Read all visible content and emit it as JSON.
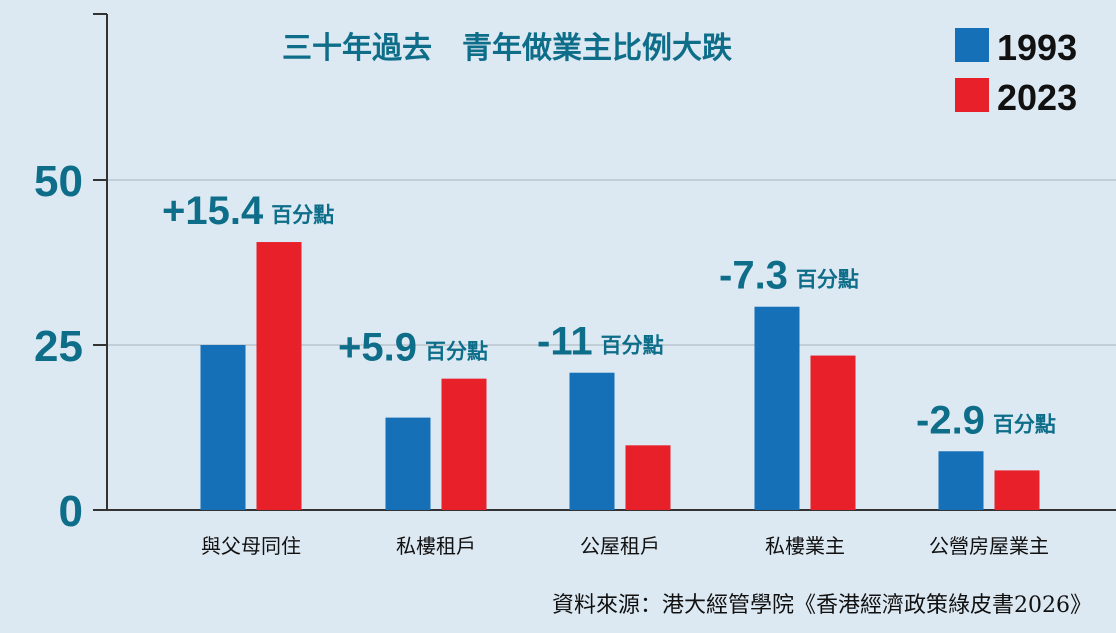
{
  "chart_data": {
    "type": "bar",
    "title": "三十年過去　青年做業主比例大跌",
    "categories": [
      "與父母同住",
      "私樓租戶",
      "公屋租戶",
      "私樓業主",
      "公營房屋業主"
    ],
    "series": [
      {
        "name": "1993",
        "color": "#1570b8",
        "values": [
          25.0,
          14.0,
          20.8,
          30.8,
          8.9
        ]
      },
      {
        "name": "2023",
        "color": "#e8202a",
        "values": [
          40.6,
          19.9,
          9.8,
          23.4,
          6.0
        ]
      }
    ],
    "annotations": [
      {
        "value": "+15.4",
        "unit": "百分點"
      },
      {
        "value": "+5.9",
        "unit": "百分點"
      },
      {
        "value": "-11",
        "unit": "百分點"
      },
      {
        "value": "-7.3",
        "unit": "百分點"
      },
      {
        "value": "-2.9",
        "unit": "百分點"
      }
    ],
    "yticks": [
      "0",
      "25",
      "50"
    ],
    "ylim": [
      0,
      75
    ],
    "grid": true,
    "legend_position": "top-right",
    "source": "資料來源：港大經管學院《香港經濟政策綠皮書2026》"
  }
}
